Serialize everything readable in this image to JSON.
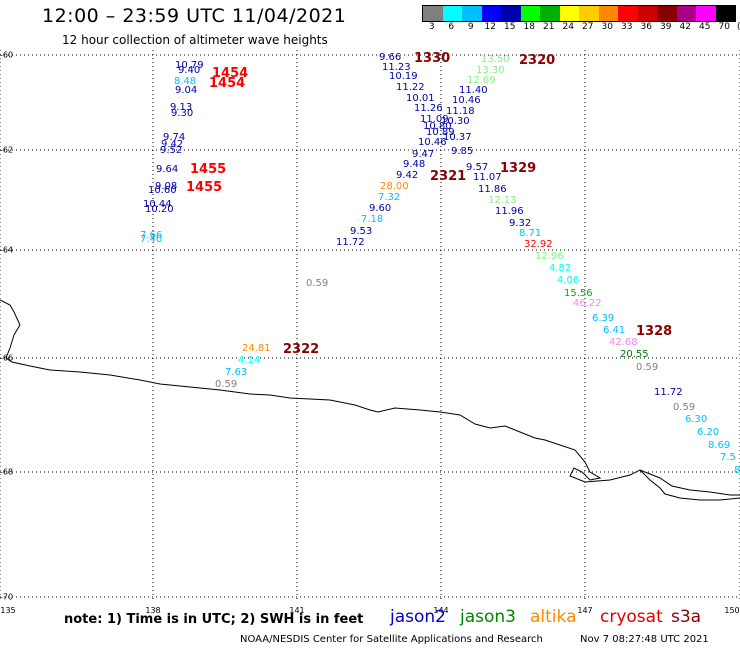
{
  "header": {
    "title": "12:00 – 23:59 UTC 11/04/2021",
    "subtitle": "12 hour collection of altimeter wave heights"
  },
  "colorbar": {
    "colors": [
      "#7f7f7f",
      "#00ffff",
      "#00bfff",
      "#0000ff",
      "#0000aa",
      "#00ff00",
      "#00b000",
      "#ffff00",
      "#ffcc00",
      "#ff8800",
      "#ff0000",
      "#cc0000",
      "#880000",
      "#aa0088",
      "#ff00ff",
      "#000000"
    ],
    "labels": [
      "3",
      "6",
      "9",
      "12",
      "15",
      "18",
      "21",
      "24",
      "27",
      "30",
      "33",
      "36",
      "39",
      "42",
      "45",
      "70",
      "(ft)"
    ]
  },
  "axes": {
    "lat_labels": [
      "-60",
      "-62",
      "-64",
      "-66",
      "-68",
      "-70"
    ],
    "lon_labels": [
      "135",
      "138",
      "141",
      "144",
      "147",
      "150"
    ]
  },
  "passes": [
    {
      "text": "1454",
      "color": "#ff0000"
    },
    {
      "text": "1454",
      "color": "#ff0000"
    },
    {
      "text": "1455",
      "color": "#ff0000"
    },
    {
      "text": "1455",
      "color": "#ff0000"
    },
    {
      "text": "1330",
      "color": "#880000"
    },
    {
      "text": "2320",
      "color": "#880000"
    },
    {
      "text": "2321",
      "color": "#880000"
    },
    {
      "text": "1329",
      "color": "#880000"
    },
    {
      "text": "1328",
      "color": "#880000"
    },
    {
      "text": "2322",
      "color": "#880000"
    }
  ],
  "observations": [
    {
      "text": "10.79",
      "color": "#0000aa"
    },
    {
      "text": "9.40",
      "color": "#0000aa"
    },
    {
      "text": "8.48",
      "color": "#00bfff"
    },
    {
      "text": "9.04",
      "color": "#0000aa"
    },
    {
      "text": "9.13",
      "color": "#0000aa"
    },
    {
      "text": "9.30",
      "color": "#0000aa"
    },
    {
      "text": "9.74",
      "color": "#0000aa"
    },
    {
      "text": "9.42",
      "color": "#0000aa"
    },
    {
      "text": "9.52",
      "color": "#0000aa"
    },
    {
      "text": "9.64",
      "color": "#0000aa"
    },
    {
      "text": "9.08",
      "color": "#0000aa"
    },
    {
      "text": "10.60",
      "color": "#0000aa"
    },
    {
      "text": "10.44",
      "color": "#0000aa"
    },
    {
      "text": "10.20",
      "color": "#0000aa"
    },
    {
      "text": "7.66",
      "color": "#00bfff"
    },
    {
      "text": "7.40",
      "color": "#00bfff"
    },
    {
      "text": "9.66",
      "color": "#0000aa"
    },
    {
      "text": "11.23",
      "color": "#0000aa"
    },
    {
      "text": "10.19",
      "color": "#0000aa"
    },
    {
      "text": "11.22",
      "color": "#0000aa"
    },
    {
      "text": "10.01",
      "color": "#0000aa"
    },
    {
      "text": "11.26",
      "color": "#0000aa"
    },
    {
      "text": "11.09",
      "color": "#0000aa"
    },
    {
      "text": "10.80",
      "color": "#0000aa"
    },
    {
      "text": "10.89",
      "color": "#0000aa"
    },
    {
      "text": "10.46",
      "color": "#0000aa"
    },
    {
      "text": "9.47",
      "color": "#0000aa"
    },
    {
      "text": "9.48",
      "color": "#0000aa"
    },
    {
      "text": "9.42",
      "color": "#0000aa"
    },
    {
      "text": "28.00",
      "color": "#ff8800"
    },
    {
      "text": "7.32",
      "color": "#00bfff"
    },
    {
      "text": "9.60",
      "color": "#0000aa"
    },
    {
      "text": "7.18",
      "color": "#00bfff"
    },
    {
      "text": "9.53",
      "color": "#0000aa"
    },
    {
      "text": "11.72",
      "color": "#0000aa"
    },
    {
      "text": "13.50",
      "color": "#88ee88"
    },
    {
      "text": "13.30",
      "color": "#88ee88"
    },
    {
      "text": "12.69",
      "color": "#88ee88"
    },
    {
      "text": "11.40",
      "color": "#0000aa"
    },
    {
      "text": "10.46",
      "color": "#0000aa"
    },
    {
      "text": "11.18",
      "color": "#0000aa"
    },
    {
      "text": "10.30",
      "color": "#0000aa"
    },
    {
      "text": "10.37",
      "color": "#0000aa"
    },
    {
      "text": "9.85",
      "color": "#0000aa"
    },
    {
      "text": "9.57",
      "color": "#0000aa"
    },
    {
      "text": "11.07",
      "color": "#0000aa"
    },
    {
      "text": "11.86",
      "color": "#0000aa"
    },
    {
      "text": "12.13",
      "color": "#88ee88"
    },
    {
      "text": "11.96",
      "color": "#0000aa"
    },
    {
      "text": "9.32",
      "color": "#0000aa"
    },
    {
      "text": "8.71",
      "color": "#00bfff"
    },
    {
      "text": "32.92",
      "color": "#ff0000"
    },
    {
      "text": "12.96",
      "color": "#88ee88"
    },
    {
      "text": "4.82",
      "color": "#00ffff"
    },
    {
      "text": "4.06",
      "color": "#00ffff"
    },
    {
      "text": "15.56",
      "color": "#00b000"
    },
    {
      "text": "46.22",
      "color": "#ee88ee"
    },
    {
      "text": "6.39",
      "color": "#00bfff"
    },
    {
      "text": "6.41",
      "color": "#00bfff"
    },
    {
      "text": "42.68",
      "color": "#ee88ee"
    },
    {
      "text": "20.55",
      "color": "#007700"
    },
    {
      "text": "0.59",
      "color": "#7f7f7f"
    },
    {
      "text": "11.72",
      "color": "#0000aa"
    },
    {
      "text": "0.59",
      "color": "#7f7f7f"
    },
    {
      "text": "6.30",
      "color": "#00bfff"
    },
    {
      "text": "6.20",
      "color": "#00bfff"
    },
    {
      "text": "8.69",
      "color": "#00bfff"
    },
    {
      "text": "7.5",
      "color": "#00bfff"
    },
    {
      "text": "8",
      "color": "#00bfff"
    },
    {
      "text": "0.59",
      "color": "#7f7f7f"
    },
    {
      "text": "24.81",
      "color": "#ff8800"
    },
    {
      "text": "4.14",
      "color": "#00ffff"
    },
    {
      "text": "7.63",
      "color": "#00bfff"
    },
    {
      "text": "0.59",
      "color": "#7f7f7f"
    }
  ],
  "footer": {
    "note": "note:  1) Time is in UTC;  2) SWH is in feet",
    "satellites": [
      {
        "name": "jason2",
        "color": "#0000cc"
      },
      {
        "name": "jason3",
        "color": "#008800"
      },
      {
        "name": "altika",
        "color": "#ff8800"
      },
      {
        "name": "cryosat",
        "color": "#dd0000"
      },
      {
        "name": "s3a",
        "color": "#880000"
      }
    ],
    "credit": "NOAA/NESDIS Center for Satellite Applications and Research",
    "timestamp": "Nov  7 08:27:48 UTC 2021"
  }
}
